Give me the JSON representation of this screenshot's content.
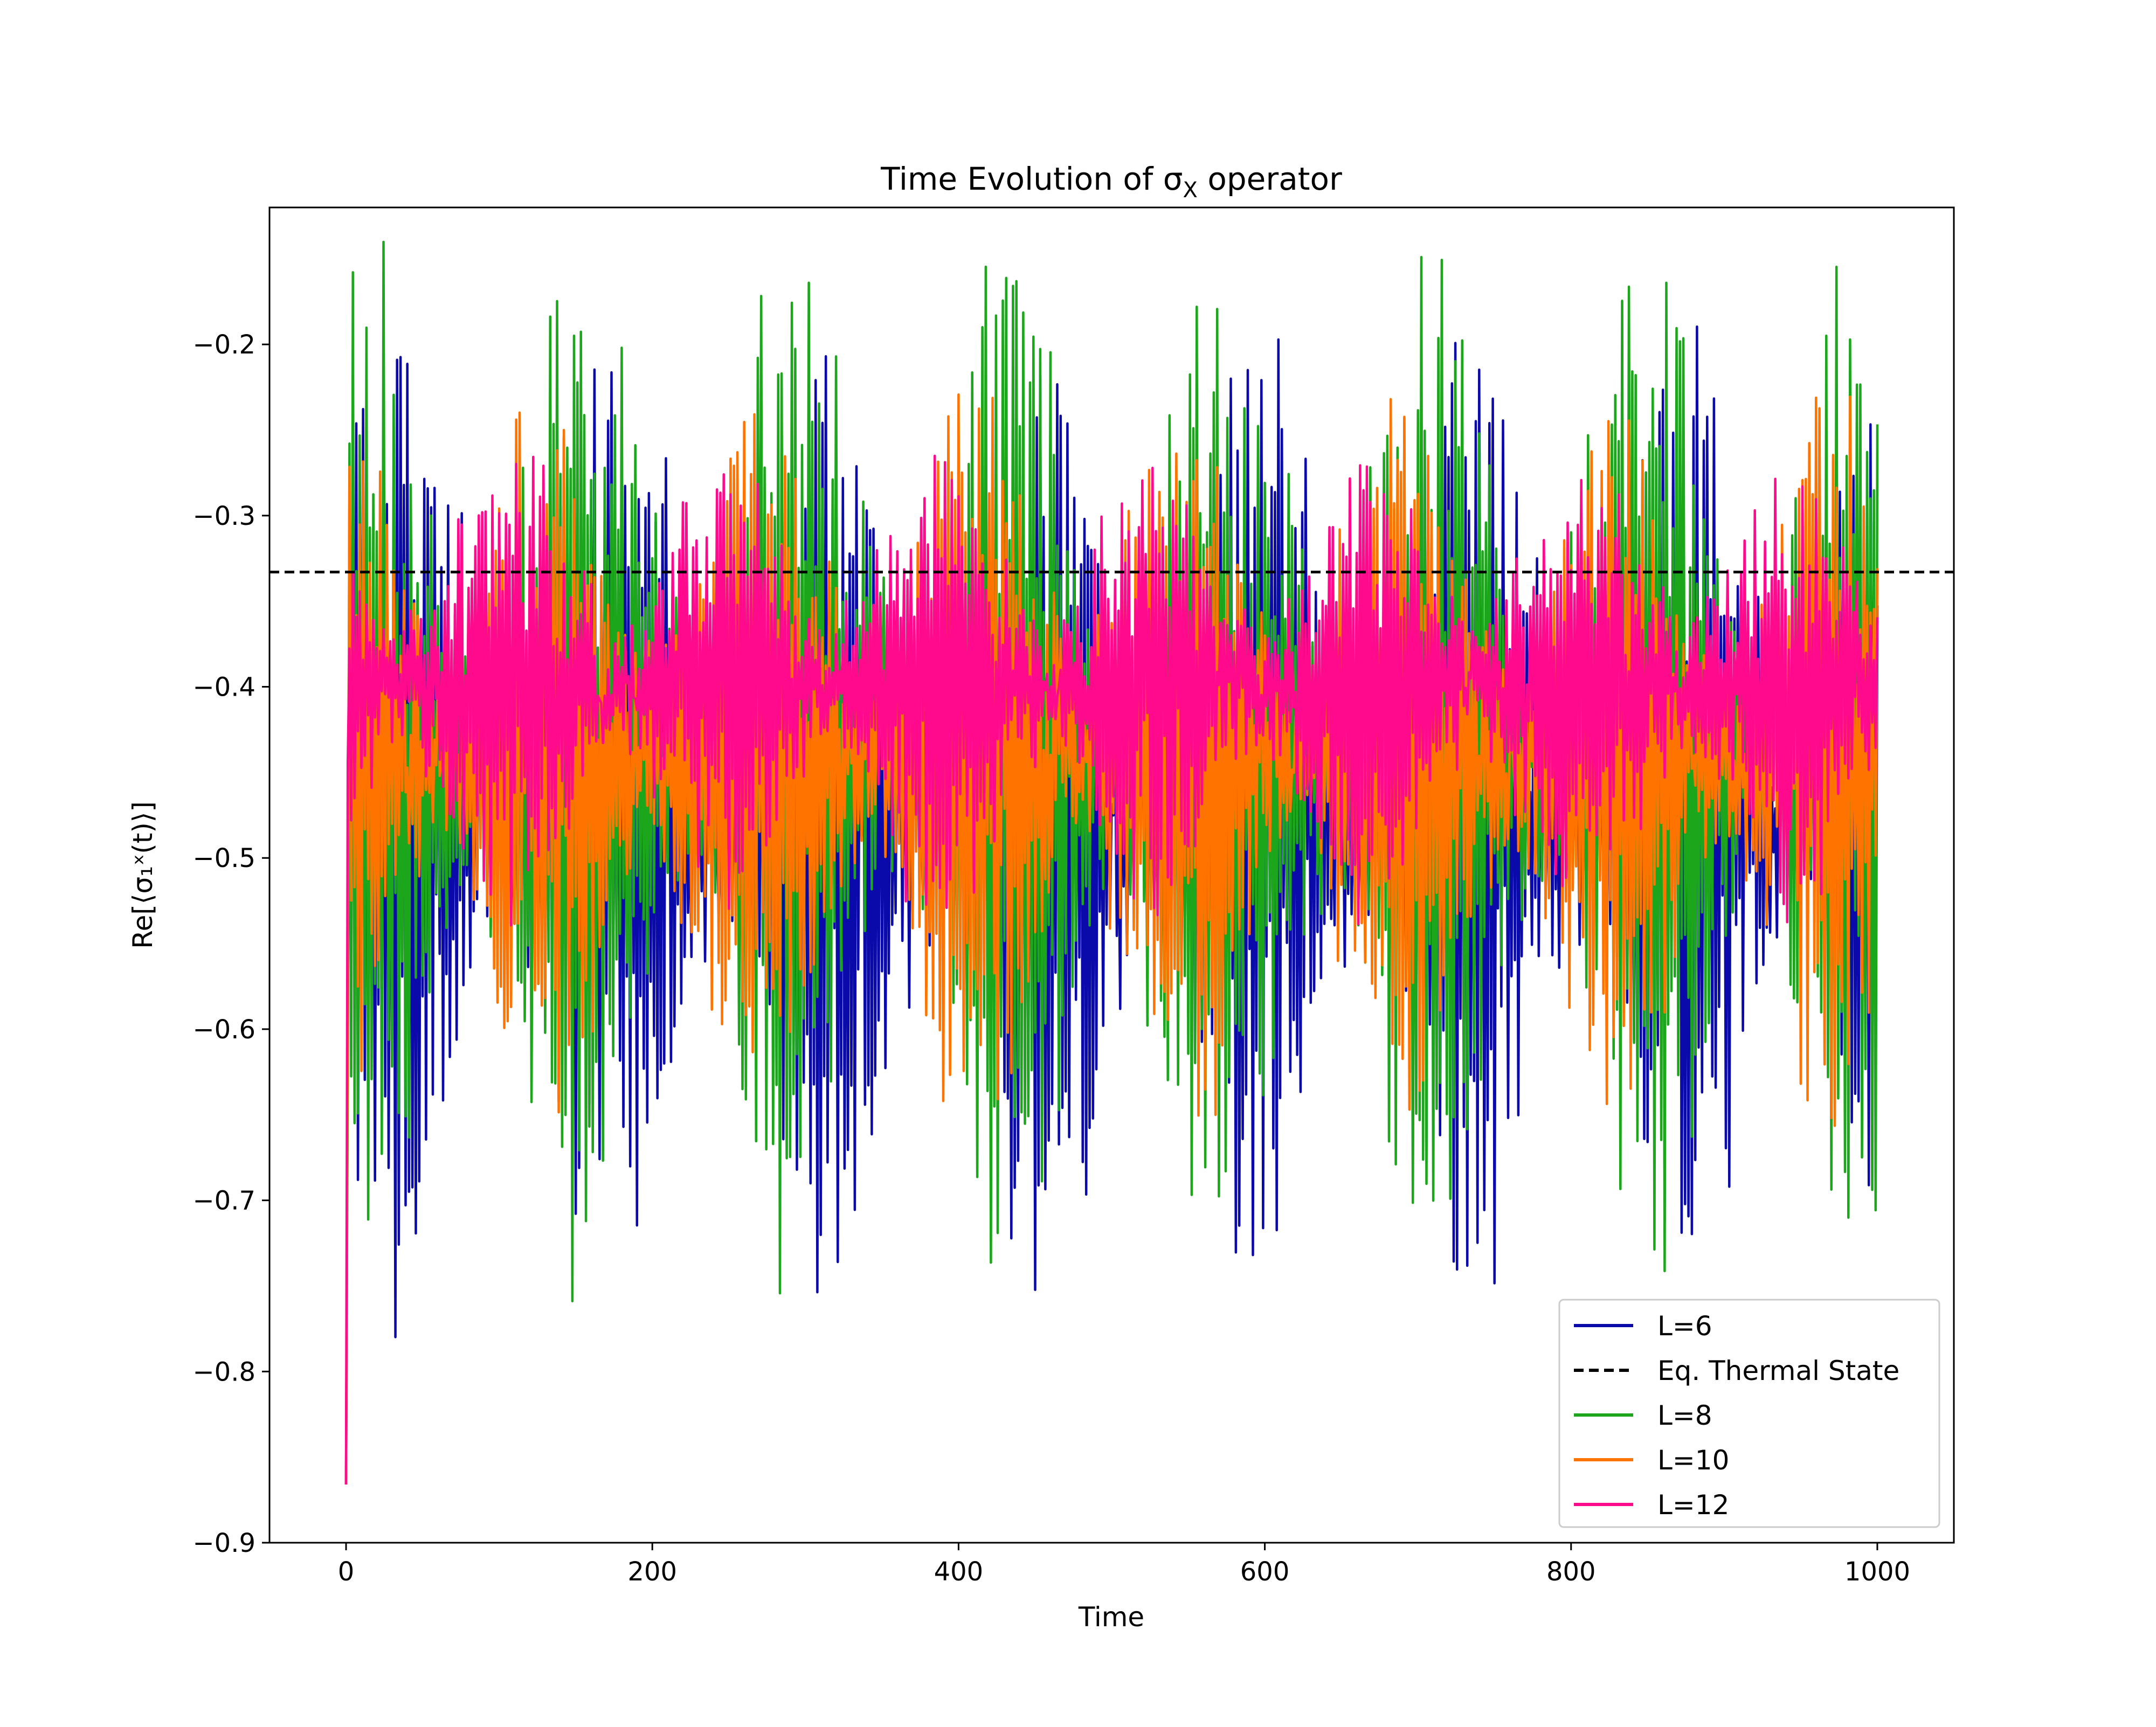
{
  "chart_data": {
    "type": "line",
    "title": "Time Evolution of σ",
    "title_subscript": "X",
    "title_suffix": " operator",
    "xlabel": "Time",
    "ylabel": "Re[⟨σ₁ˣ(t)⟩]",
    "xlim": [
      -50,
      1050
    ],
    "ylim": [
      -0.9,
      -0.12
    ],
    "xticks": [
      0,
      200,
      400,
      600,
      800,
      1000
    ],
    "xtick_labels": [
      "0",
      "200",
      "400",
      "600",
      "800",
      "1000"
    ],
    "yticks": [
      -0.9,
      -0.8,
      -0.7,
      -0.6,
      -0.5,
      -0.4,
      -0.3,
      -0.2
    ],
    "ytick_labels": [
      "−0.9",
      "−0.8",
      "−0.7",
      "−0.6",
      "−0.5",
      "−0.4",
      "−0.3",
      "−0.2"
    ],
    "grid": false,
    "legend_position": "lower-right",
    "x_range": [
      0,
      1000
    ],
    "initial_value": -0.866,
    "reference_line": {
      "name": "Eq. Thermal State",
      "y": -0.333,
      "color": "#000000",
      "style": "dashed"
    },
    "series": [
      {
        "name": "L=6",
        "color": "#0a0aaa",
        "mean": -0.47,
        "min": -0.815,
        "max": -0.187,
        "draw_order": 1
      },
      {
        "name": "L=8",
        "color": "#1ca61c",
        "mean": -0.44,
        "min": -0.76,
        "max": -0.14,
        "draw_order": 2
      },
      {
        "name": "L=10",
        "color": "#ff7300",
        "mean": -0.44,
        "min": -0.666,
        "max": -0.225,
        "draw_order": 3
      },
      {
        "name": "L=12",
        "color": "#ff0a8c",
        "mean": -0.4,
        "min": -0.54,
        "max": -0.265,
        "draw_order": 4
      }
    ],
    "legend_order": [
      "L=6",
      "Eq. Thermal State",
      "L=8",
      "L=10",
      "L=12"
    ]
  }
}
